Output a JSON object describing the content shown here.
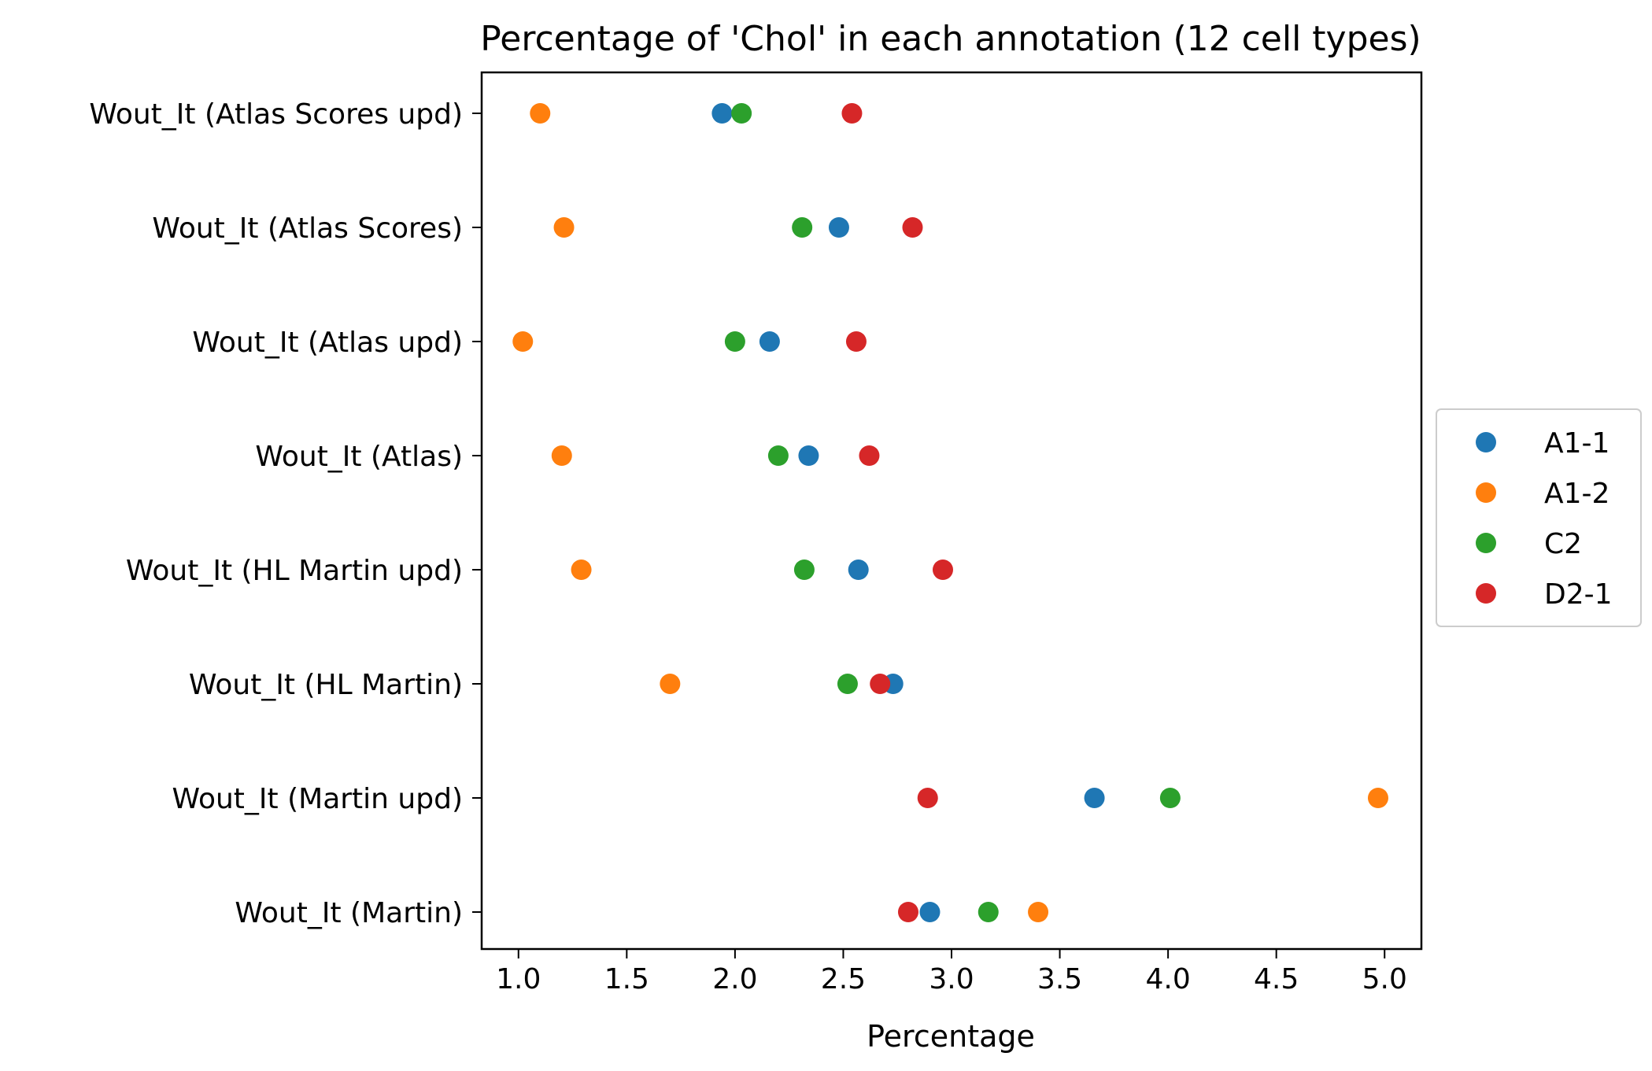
{
  "chart_data": {
    "type": "scatter",
    "title": "Percentage of 'Chol' in each annotation (12 cell types)",
    "xlabel": "Percentage",
    "ylabel": "",
    "xlim": [
      0.83,
      5.17
    ],
    "xticks": [
      "1.0",
      "1.5",
      "2.0",
      "2.5",
      "3.0",
      "3.5",
      "4.0",
      "4.5",
      "5.0"
    ],
    "categories": [
      "Wout_It (Atlas Scores upd)",
      "Wout_It (Atlas Scores)",
      "Wout_It (Atlas upd)",
      "Wout_It (Atlas)",
      "Wout_It (HL Martin upd)",
      "Wout_It (HL Martin)",
      "Wout_It (Martin upd)",
      "Wout_It (Martin)"
    ],
    "series": [
      {
        "name": "A1-1",
        "color": "#1f77b4",
        "values": [
          1.94,
          2.48,
          2.16,
          2.34,
          2.57,
          2.73,
          3.66,
          2.9
        ]
      },
      {
        "name": "A1-2",
        "color": "#ff7f0e",
        "values": [
          1.1,
          1.21,
          1.02,
          1.2,
          1.29,
          1.7,
          4.97,
          3.4
        ]
      },
      {
        "name": "C2",
        "color": "#2ca02c",
        "values": [
          2.03,
          2.31,
          2.0,
          2.2,
          2.32,
          2.52,
          4.01,
          3.17
        ]
      },
      {
        "name": "D2-1",
        "color": "#d62728",
        "values": [
          2.54,
          2.82,
          2.56,
          2.62,
          2.96,
          2.67,
          2.89,
          2.8
        ]
      }
    ],
    "grid": false,
    "legend_position": "right"
  }
}
